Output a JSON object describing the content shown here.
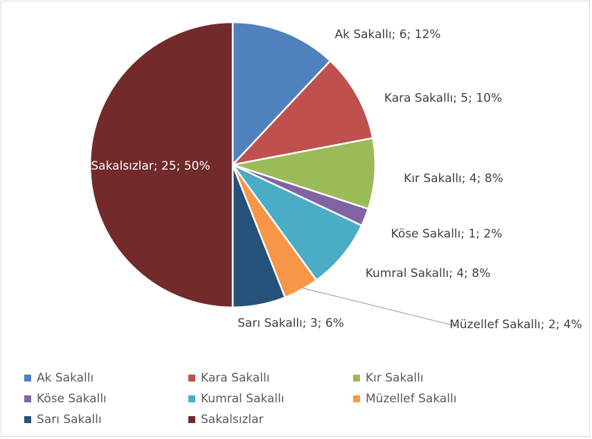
{
  "chart_data": {
    "type": "pie",
    "categories": [
      "Ak Sakallı",
      "Kara Sakallı",
      "Kır Sakallı",
      "Köse Sakallı",
      "Kumral Sakallı",
      "Müzellef Sakallı",
      "Sarı Sakallı",
      "Sakalsızlar"
    ],
    "values": [
      6,
      5,
      4,
      1,
      4,
      2,
      3,
      25
    ],
    "value_labels": [
      "Ak Sakallı; 6; 12%",
      "Kara Sakallı; 5; 10%",
      "Kır Sakallı; 4; 8%",
      "Köse Sakallı; 1; 2%",
      "Kumral Sakallı; 4; 8%",
      "Müzellef Sakallı; 2; 4%",
      "Sarı Sakallı; 3; 6%",
      "Sakalsızlar; 25; 50%"
    ],
    "colors": [
      "#4f81bd",
      "#c0504d",
      "#9bbb59",
      "#8064a2",
      "#4bacc6",
      "#f79646",
      "#265178",
      "#722a2a"
    ],
    "legend": "bottom"
  }
}
